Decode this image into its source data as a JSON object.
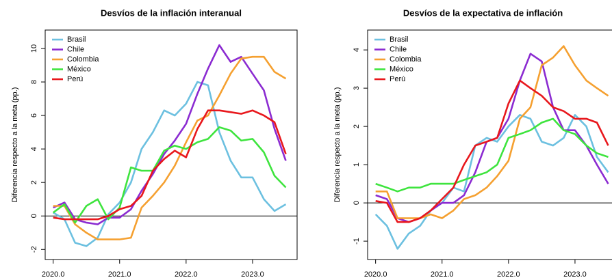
{
  "chart_data": [
    {
      "type": "line",
      "title": "Desvíos de la inflación interanual",
      "y_label": "Diferencia respecto a la meta (pp.)",
      "x": [
        2020,
        2020.17,
        2020.33,
        2020.5,
        2020.67,
        2020.83,
        2021,
        2021.17,
        2021.33,
        2021.5,
        2021.67,
        2021.83,
        2022,
        2022.17,
        2022.33,
        2022.5,
        2022.67,
        2022.83,
        2023,
        2023.17,
        2023.33,
        2023.5
      ],
      "xlim": [
        2019.88,
        2023.67
      ],
      "xticks": [
        {
          "value": 2020,
          "label": "2020.0"
        },
        {
          "value": 2021,
          "label": "2021.0"
        },
        {
          "value": 2022,
          "label": "2022.0"
        },
        {
          "value": 2023,
          "label": "2023.0"
        }
      ],
      "ylim": [
        -2.6,
        11.1
      ],
      "yticks": [
        -2,
        0,
        2,
        4,
        6,
        8,
        10
      ],
      "reference_line": 0,
      "legend": "top-left",
      "series": [
        {
          "name": "Brasil",
          "color": "#6cc0e0",
          "values": [
            0.2,
            -0.2,
            -1.6,
            -1.8,
            -1.3,
            0.1,
            0.8,
            2.0,
            4.0,
            5.0,
            6.3,
            6.0,
            6.7,
            8.0,
            7.8,
            5.0,
            3.3,
            2.3,
            2.3,
            1.0,
            0.3,
            0.7
          ]
        },
        {
          "name": "Chile",
          "color": "#8b2bd1",
          "values": [
            0.5,
            0.8,
            -0.2,
            -0.4,
            -0.5,
            -0.1,
            -0.1,
            0.4,
            1.5,
            2.5,
            3.7,
            4.5,
            5.5,
            7.3,
            8.8,
            10.2,
            9.2,
            9.5,
            8.5,
            7.5,
            5.2,
            3.3
          ]
        },
        {
          "name": "Colombia",
          "color": "#f5a030",
          "values": [
            0.6,
            0.6,
            -0.5,
            -1.0,
            -1.4,
            -1.4,
            -1.4,
            -1.3,
            0.5,
            1.2,
            2.0,
            3.0,
            4.4,
            5.7,
            6.0,
            7.2,
            8.5,
            9.4,
            9.5,
            9.5,
            8.6,
            8.2
          ]
        },
        {
          "name": "México",
          "color": "#3ee43e",
          "values": [
            0.2,
            0.7,
            -0.4,
            0.6,
            1.0,
            -0.2,
            0.5,
            2.9,
            2.7,
            2.7,
            3.9,
            4.2,
            4.0,
            4.4,
            4.6,
            5.3,
            5.1,
            4.5,
            4.6,
            3.8,
            2.4,
            1.7
          ]
        },
        {
          "name": "Perú",
          "color": "#e8171c",
          "values": [
            -0.1,
            -0.2,
            -0.2,
            -0.2,
            -0.2,
            0.0,
            0.4,
            0.6,
            1.2,
            2.7,
            3.4,
            3.9,
            3.5,
            5.2,
            6.3,
            6.3,
            6.2,
            6.1,
            6.3,
            6.0,
            5.6,
            3.7
          ]
        }
      ]
    },
    {
      "type": "line",
      "title": "Desvíos de la expectativa de inflación",
      "y_label": "Diferencia respecto a la meta (pp.)",
      "x": [
        2020,
        2020.17,
        2020.33,
        2020.5,
        2020.67,
        2020.83,
        2021,
        2021.17,
        2021.33,
        2021.5,
        2021.67,
        2021.83,
        2022,
        2022.17,
        2022.33,
        2022.5,
        2022.67,
        2022.83,
        2023,
        2023.17,
        2023.33,
        2023.5
      ],
      "xlim": [
        2019.88,
        2023.67
      ],
      "xticks": [
        {
          "value": 2020,
          "label": "2020.0"
        },
        {
          "value": 2021,
          "label": "2021.0"
        },
        {
          "value": 2022,
          "label": "2022.0"
        },
        {
          "value": 2023,
          "label": "2023.0"
        }
      ],
      "ylim": [
        -1.48,
        4.52
      ],
      "yticks": [
        -1,
        0,
        1,
        2,
        3,
        4
      ],
      "reference_line": 0,
      "legend": "top-left",
      "series": [
        {
          "name": "Brasil",
          "color": "#6cc0e0",
          "values": [
            -0.3,
            -0.6,
            -1.2,
            -0.8,
            -0.6,
            -0.2,
            0.0,
            0.4,
            0.3,
            1.5,
            1.7,
            1.6,
            2.0,
            2.3,
            2.2,
            1.6,
            1.5,
            1.7,
            2.3,
            2.0,
            1.2,
            0.8
          ]
        },
        {
          "name": "Chile",
          "color": "#8b2bd1",
          "values": [
            0.2,
            0.1,
            -0.4,
            -0.5,
            -0.4,
            -0.2,
            0.0,
            0.0,
            0.2,
            0.8,
            1.6,
            1.7,
            2.2,
            3.2,
            3.9,
            3.7,
            2.5,
            1.9,
            1.9,
            1.5,
            1.0,
            0.5
          ]
        },
        {
          "name": "Colombia",
          "color": "#f5a030",
          "values": [
            0.3,
            0.3,
            -0.4,
            -0.4,
            -0.4,
            -0.3,
            -0.4,
            -0.2,
            0.1,
            0.2,
            0.4,
            0.7,
            1.1,
            2.2,
            2.5,
            3.6,
            3.8,
            4.1,
            3.6,
            3.2,
            3.0,
            2.8
          ]
        },
        {
          "name": "México",
          "color": "#3ee43e",
          "values": [
            0.5,
            0.4,
            0.3,
            0.4,
            0.4,
            0.5,
            0.5,
            0.5,
            0.6,
            0.7,
            0.8,
            1.0,
            1.7,
            1.8,
            1.9,
            2.1,
            2.2,
            1.9,
            1.8,
            1.5,
            1.3,
            1.2
          ]
        },
        {
          "name": "Perú",
          "color": "#e8171c",
          "values": [
            0.05,
            0.0,
            -0.5,
            -0.5,
            -0.4,
            -0.2,
            0.1,
            0.4,
            1.0,
            1.5,
            1.6,
            1.7,
            2.6,
            3.2,
            3.0,
            2.8,
            2.5,
            2.4,
            2.2,
            2.2,
            2.1,
            1.5
          ]
        }
      ]
    }
  ]
}
